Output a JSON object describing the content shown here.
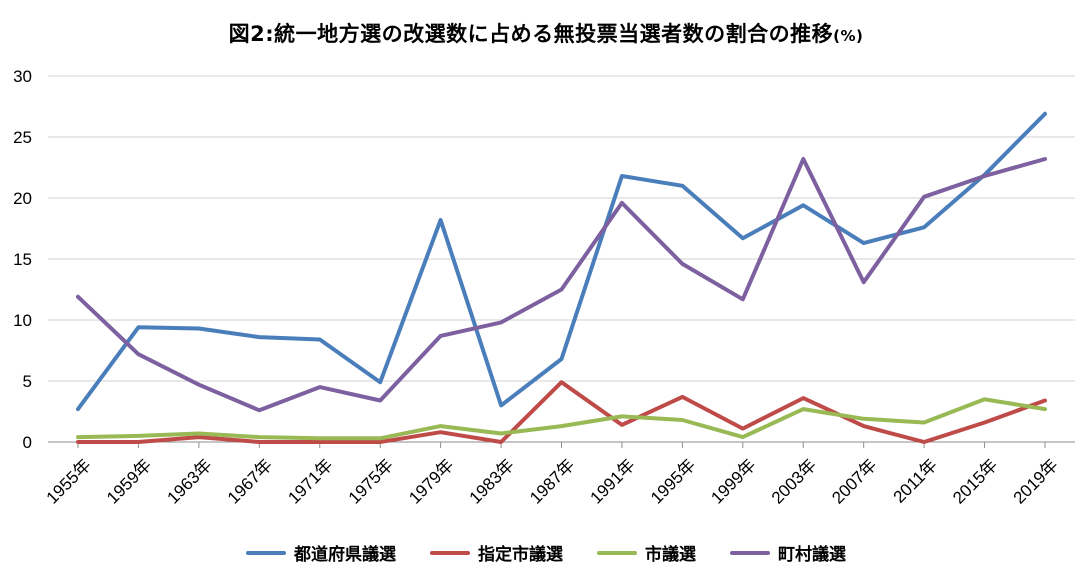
{
  "chart_data": {
    "type": "line",
    "title": "図2:統一地方選の改選数に占める無投票当選者数の割合の推移",
    "title_unit": "(%)",
    "xlabel": "",
    "ylabel": "",
    "ylim": [
      0,
      30
    ],
    "yticks": [
      "0",
      "5",
      "10",
      "15",
      "20",
      "25",
      "30"
    ],
    "categories": [
      "1955年",
      "1959年",
      "1963年",
      "1967年",
      "1971年",
      "1975年",
      "1979年",
      "1983年",
      "1987年",
      "1991年",
      "1995年",
      "1999年",
      "2003年",
      "2007年",
      "2011年",
      "2015年",
      "2019年"
    ],
    "grid": true,
    "legend_position": "bottom",
    "series": [
      {
        "name": "都道府県議選",
        "color": "#4a7ebb",
        "values": [
          2.7,
          9.4,
          9.3,
          8.6,
          8.4,
          4.9,
          18.2,
          3.0,
          6.8,
          21.8,
          21.0,
          16.7,
          19.4,
          16.3,
          17.6,
          21.9,
          26.9
        ]
      },
      {
        "name": "指定市議選",
        "color": "#be4b48",
        "values": [
          0.0,
          0.0,
          0.4,
          0.0,
          0.0,
          0.0,
          0.8,
          0.0,
          4.9,
          1.4,
          3.7,
          1.1,
          3.6,
          1.3,
          0.0,
          1.6,
          3.4
        ]
      },
      {
        "name": "市議選",
        "color": "#98b954",
        "values": [
          0.4,
          0.5,
          0.7,
          0.4,
          0.3,
          0.3,
          1.3,
          0.7,
          1.3,
          2.1,
          1.8,
          0.4,
          2.7,
          1.9,
          1.6,
          3.5,
          2.7
        ]
      },
      {
        "name": "町村議選",
        "color": "#7d60a0",
        "values": [
          11.9,
          7.2,
          4.7,
          2.6,
          4.5,
          3.4,
          8.7,
          9.8,
          12.5,
          19.6,
          14.6,
          11.7,
          23.2,
          13.1,
          20.1,
          21.8,
          23.2
        ]
      }
    ]
  }
}
